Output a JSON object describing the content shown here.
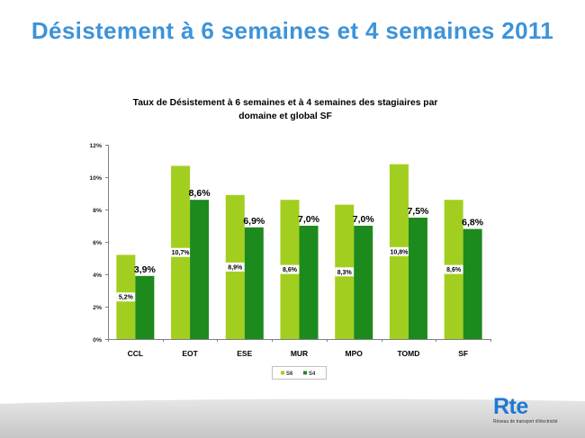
{
  "slide": {
    "title": "Désistement à 6 semaines et 4 semaines 2011",
    "title_color": "#3d93d9"
  },
  "logo": {
    "text": "Rte",
    "tagline": "Réseau de transport d'électricité",
    "color": "#1f78d3"
  },
  "chart_data": {
    "type": "bar",
    "title": [
      "Taux de Désistement à 6 semaines et à 4 semaines des stagiaires par",
      "domaine et global SF"
    ],
    "categories": [
      "CCL",
      "EOT",
      "ESE",
      "MUR",
      "MPO",
      "TOMD",
      "SF"
    ],
    "series": [
      {
        "name": "S6",
        "values": [
          5.2,
          10.7,
          8.9,
          8.6,
          8.3,
          10.8,
          8.6
        ],
        "labels": [
          "5,2%",
          "10,7%",
          "8,9%",
          "8,6%",
          "8,3%",
          "10,8%",
          "8,6%"
        ],
        "color": "#a2cf1f"
      },
      {
        "name": "S4",
        "values": [
          3.9,
          8.6,
          6.9,
          7.0,
          7.0,
          7.5,
          6.8
        ],
        "labels": [
          "3,9%",
          "8,6%",
          "6,9%",
          "7,0%",
          "7,0%",
          "7,5%",
          "6,8%"
        ],
        "color": "#1d8a1d"
      }
    ],
    "ylim": [
      0,
      12
    ],
    "yticks": [
      0,
      2,
      4,
      6,
      8,
      10,
      12
    ],
    "ytick_labels": [
      "0%",
      "2%",
      "4%",
      "6%",
      "8%",
      "10%",
      "12%"
    ],
    "grid": false,
    "legend": "bottom"
  }
}
